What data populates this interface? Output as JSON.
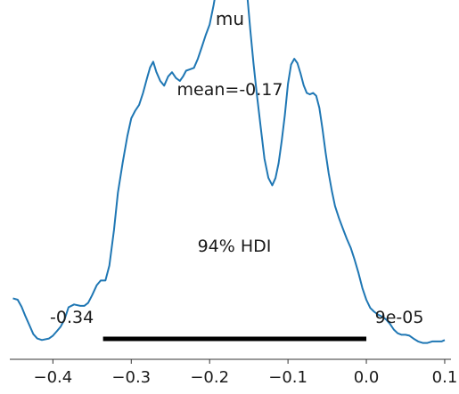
{
  "chart_data": {
    "type": "line",
    "title": "mu",
    "xlabel": "",
    "ylabel": "",
    "xlim": [
      -0.455,
      0.108
    ],
    "x_ticks": [
      -0.4,
      -0.3,
      -0.2,
      -0.1,
      0.0,
      0.1
    ],
    "x_tick_labels": [
      "−0.4",
      "−0.3",
      "−0.2",
      "−0.1",
      "0.0",
      "0.1"
    ],
    "y_axis_visible": false,
    "grid": false,
    "series": [
      {
        "color": "#1f77b4",
        "x": [
          -0.451,
          -0.445,
          -0.44,
          -0.435,
          -0.43,
          -0.425,
          -0.42,
          -0.414,
          -0.405,
          -0.4,
          -0.395,
          -0.39,
          -0.385,
          -0.38,
          -0.373,
          -0.365,
          -0.36,
          -0.355,
          -0.35,
          -0.344,
          -0.339,
          -0.333,
          -0.328,
          -0.322,
          -0.317,
          -0.311,
          -0.305,
          -0.3,
          -0.295,
          -0.29,
          -0.285,
          -0.28,
          -0.276,
          -0.272,
          -0.268,
          -0.263,
          -0.258,
          -0.253,
          -0.248,
          -0.243,
          -0.238,
          -0.234,
          -0.23,
          -0.225,
          -0.22,
          -0.215,
          -0.21,
          -0.205,
          -0.2,
          -0.195,
          -0.19,
          -0.185,
          -0.18,
          -0.175,
          -0.171,
          -0.168,
          -0.165,
          -0.162,
          -0.159,
          -0.156,
          -0.152,
          -0.148,
          -0.144,
          -0.14,
          -0.135,
          -0.13,
          -0.125,
          -0.12,
          -0.116,
          -0.112,
          -0.108,
          -0.104,
          -0.1,
          -0.096,
          -0.092,
          -0.088,
          -0.084,
          -0.08,
          -0.076,
          -0.072,
          -0.068,
          -0.064,
          -0.06,
          -0.056,
          -0.052,
          -0.048,
          -0.044,
          -0.04,
          -0.035,
          -0.03,
          -0.025,
          -0.02,
          -0.015,
          -0.01,
          -0.005,
          0.0,
          0.005,
          0.01,
          0.015,
          0.02,
          0.025,
          0.03,
          0.035,
          0.04,
          0.045,
          0.05,
          0.055,
          0.06,
          0.066,
          0.072,
          0.078,
          0.084,
          0.09,
          0.096,
          0.1
        ],
        "y": [
          0.133,
          0.128,
          0.104,
          0.071,
          0.041,
          0.01,
          -0.005,
          -0.01,
          -0.005,
          0.005,
          0.02,
          0.036,
          0.061,
          0.102,
          0.112,
          0.107,
          0.107,
          0.117,
          0.143,
          0.178,
          0.194,
          0.194,
          0.245,
          0.367,
          0.495,
          0.597,
          0.689,
          0.75,
          0.776,
          0.796,
          0.837,
          0.887,
          0.924,
          0.944,
          0.909,
          0.878,
          0.862,
          0.893,
          0.908,
          0.888,
          0.878,
          0.893,
          0.913,
          0.918,
          0.923,
          0.954,
          0.994,
          1.035,
          1.071,
          1.137,
          1.214,
          1.29,
          1.367,
          1.418,
          1.448,
          1.469,
          1.464,
          1.439,
          1.382,
          1.29,
          1.173,
          1.051,
          0.939,
          0.837,
          0.725,
          0.612,
          0.546,
          0.52,
          0.545,
          0.596,
          0.673,
          0.761,
          0.868,
          0.934,
          0.954,
          0.939,
          0.904,
          0.863,
          0.837,
          0.832,
          0.837,
          0.827,
          0.786,
          0.714,
          0.633,
          0.561,
          0.5,
          0.449,
          0.408,
          0.372,
          0.337,
          0.306,
          0.265,
          0.219,
          0.168,
          0.128,
          0.1,
          0.087,
          0.077,
          0.07,
          0.061,
          0.046,
          0.026,
          0.013,
          0.008,
          0.008,
          0.005,
          -0.005,
          -0.015,
          -0.02,
          -0.02,
          -0.015,
          -0.015,
          -0.015,
          -0.01
        ]
      }
    ],
    "annotations": {
      "mean_label": "mean=-0.17",
      "mean_value": -0.17,
      "hdi_label": "94% HDI",
      "hdi_low": -0.336,
      "hdi_high": 0.0,
      "hdi_low_label": "-0.34",
      "hdi_high_label": "9e-05"
    }
  }
}
